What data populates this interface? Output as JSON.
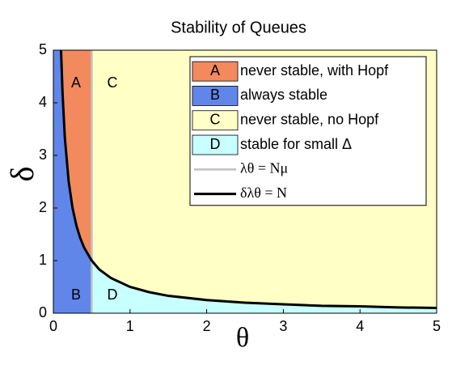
{
  "chart_data": {
    "type": "line",
    "title": "Stability of Queues",
    "x_label": "θ",
    "y_label": "δ",
    "xlim": [
      0,
      5
    ],
    "ylim": [
      0,
      5
    ],
    "xticks": [
      0,
      1,
      2,
      3,
      4,
      5
    ],
    "yticks": [
      0,
      1,
      2,
      3,
      4,
      5
    ],
    "legend": "upper right",
    "regions": [
      {
        "label": "A",
        "name": "never stable, with Hopf",
        "color": "#f28a5e"
      },
      {
        "label": "B",
        "name": "always stable",
        "color": "#6186ea"
      },
      {
        "label": "C",
        "name": "never stable, no Hopf",
        "color": "#ffffc6"
      },
      {
        "label": "D",
        "name": "stable for small Δ",
        "color": "#c8ffff"
      }
    ],
    "series": [
      {
        "name": "λθ = Nμ",
        "color": "#c0c0c0",
        "x": [
          0.5,
          0.5
        ],
        "values": [
          0,
          5
        ]
      },
      {
        "name": "δλθ = N",
        "color": "#000000",
        "x": [
          0.1,
          0.12,
          0.15,
          0.2,
          0.25,
          0.3,
          0.35,
          0.4,
          0.5,
          0.6,
          0.75,
          1,
          1.25,
          1.5,
          2,
          2.5,
          3,
          3.5,
          4,
          4.5,
          5
        ],
        "values": [
          5,
          4.17,
          3.33,
          2.5,
          2,
          1.67,
          1.43,
          1.25,
          1,
          0.83,
          0.67,
          0.5,
          0.4,
          0.33,
          0.25,
          0.2,
          0.17,
          0.14,
          0.13,
          0.11,
          0.1
        ]
      }
    ]
  }
}
